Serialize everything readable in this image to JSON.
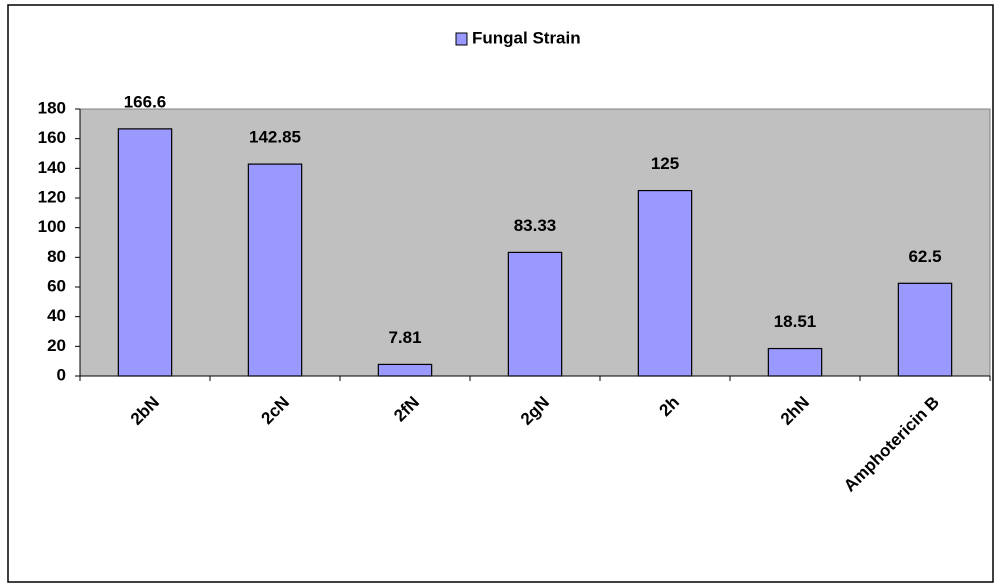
{
  "chart_data": {
    "type": "bar",
    "legend": "Fungal Strain",
    "categories": [
      "2bN",
      "2cN",
      "2fN",
      "2gN",
      "2h",
      "2hN",
      "Amphotericin B"
    ],
    "values": [
      166.6,
      142.85,
      7.81,
      83.33,
      125,
      18.51,
      62.5
    ],
    "color": "#9999ff",
    "ylim": [
      0,
      180
    ],
    "yticks": [
      0,
      20,
      40,
      60,
      80,
      100,
      120,
      140,
      160,
      180
    ],
    "grid": false,
    "legend_position": "top"
  }
}
